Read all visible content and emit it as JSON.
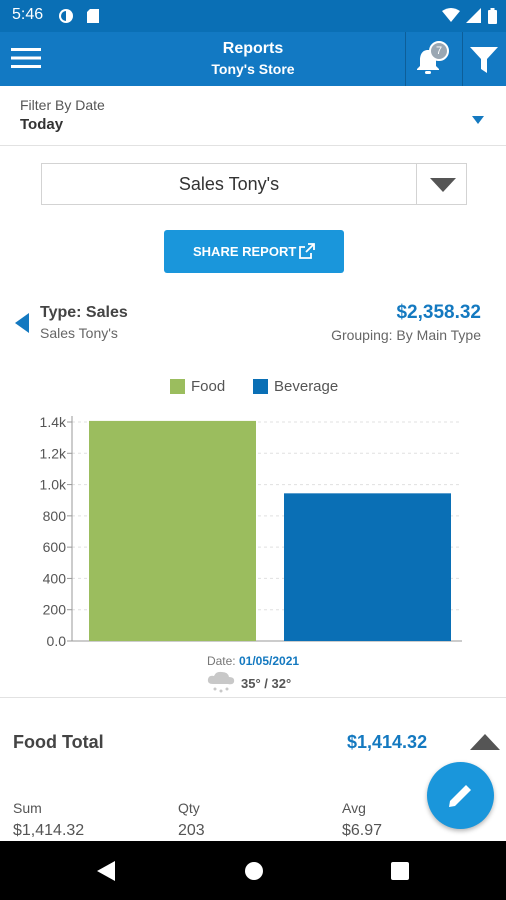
{
  "status_bar": {
    "time": "5:46"
  },
  "app_bar": {
    "title": "Reports",
    "subtitle": "Tony's Store",
    "notification_count": "7",
    "icons": [
      "menu-icon",
      "bell-icon",
      "filter-icon"
    ]
  },
  "filter": {
    "label": "Filter By Date",
    "value": "Today"
  },
  "report_selector": {
    "selected": "Sales Tony's"
  },
  "share_button": {
    "label": "SHARE REPORT"
  },
  "summary": {
    "type_label": "Type: Sales",
    "store_label": "Sales Tony's",
    "total": "$2,358.32",
    "grouping": "Grouping: By Main Type"
  },
  "chart_data": {
    "type": "bar",
    "categories": [
      "Food",
      "Beverage"
    ],
    "series": [
      {
        "name": "Food",
        "values": [
          1414.32,
          null
        ],
        "color": "#9bbd5e"
      },
      {
        "name": "Beverage",
        "values": [
          null,
          944.0
        ],
        "color": "#0a6fb5"
      }
    ],
    "ylim": [
      0,
      1400
    ],
    "y_ticks": [
      "0.0",
      "200",
      "400",
      "600",
      "800",
      "1.0k",
      "1.2k",
      "1.4k"
    ],
    "legend_position": "top-center",
    "grid": true
  },
  "chart_footer": {
    "date_label": "Date:",
    "date": "01/05/2021",
    "temperature": "35° / 32°",
    "weather_icon": "snow-cloud-icon"
  },
  "food_section": {
    "title": "Food Total",
    "amount": "$1,414.32",
    "stats": [
      {
        "label": "Sum",
        "value": "$1,414.32"
      },
      {
        "label": "Qty",
        "value": "203"
      },
      {
        "label": "Avg",
        "value": "$6.97"
      }
    ]
  },
  "colors": {
    "primary": "#1279c3",
    "accent": "#1a96db",
    "food": "#9bbd5e",
    "beverage": "#0a6fb5"
  }
}
